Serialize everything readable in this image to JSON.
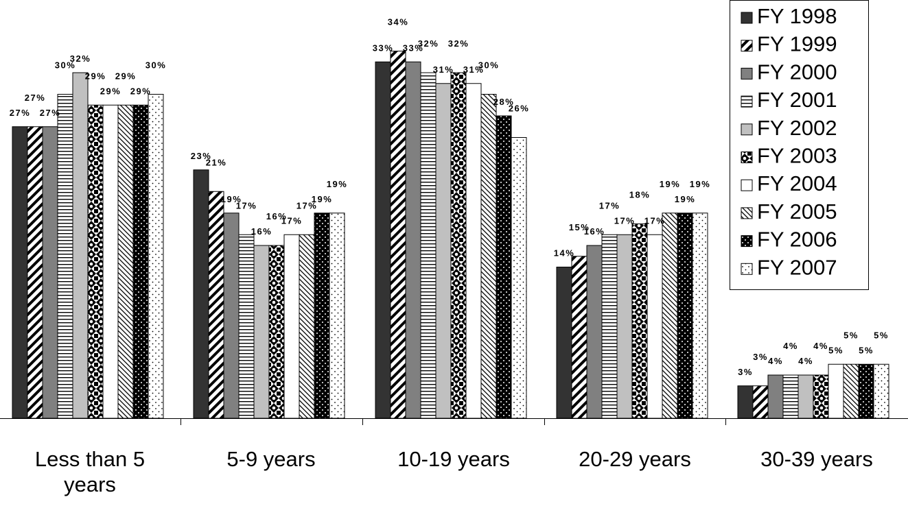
{
  "chart_data": {
    "type": "bar",
    "title": "",
    "xlabel": "",
    "ylabel": "",
    "ylim": [
      0,
      34
    ],
    "grid": false,
    "legend_position": "top-right",
    "categories": [
      [
        "Less than 5",
        "years"
      ],
      [
        "5-9 years"
      ],
      [
        "10-19 years"
      ],
      [
        "20-29 years"
      ],
      [
        "30-39 years"
      ]
    ],
    "series": [
      {
        "name": "FY 1998",
        "pattern": "solid-dark",
        "values": [
          27,
          23,
          33,
          14,
          3
        ]
      },
      {
        "name": "FY 1999",
        "pattern": "diagonal-stripes",
        "values": [
          27,
          21,
          34,
          15,
          3
        ]
      },
      {
        "name": "FY 2000",
        "pattern": "solid-gray",
        "values": [
          27,
          19,
          33,
          16,
          4
        ]
      },
      {
        "name": "FY 2001",
        "pattern": "horizontal-lines",
        "values": [
          30,
          17,
          32,
          17,
          4
        ]
      },
      {
        "name": "FY 2002",
        "pattern": "light-gray",
        "values": [
          32,
          16,
          31,
          17,
          4
        ]
      },
      {
        "name": "FY 2003",
        "pattern": "checker-diamond",
        "values": [
          29,
          16,
          32,
          18,
          4
        ]
      },
      {
        "name": "FY 2004",
        "pattern": "white",
        "values": [
          29,
          17,
          31,
          17,
          5
        ]
      },
      {
        "name": "FY 2005",
        "pattern": "fine-diagonal",
        "values": [
          29,
          17,
          30,
          19,
          5
        ]
      },
      {
        "name": "FY 2006",
        "pattern": "black-dots",
        "values": [
          29,
          19,
          28,
          19,
          5
        ]
      },
      {
        "name": "FY 2007",
        "pattern": "sparse-dots",
        "values": [
          30,
          19,
          26,
          19,
          5
        ]
      }
    ],
    "value_suffix": "%"
  }
}
